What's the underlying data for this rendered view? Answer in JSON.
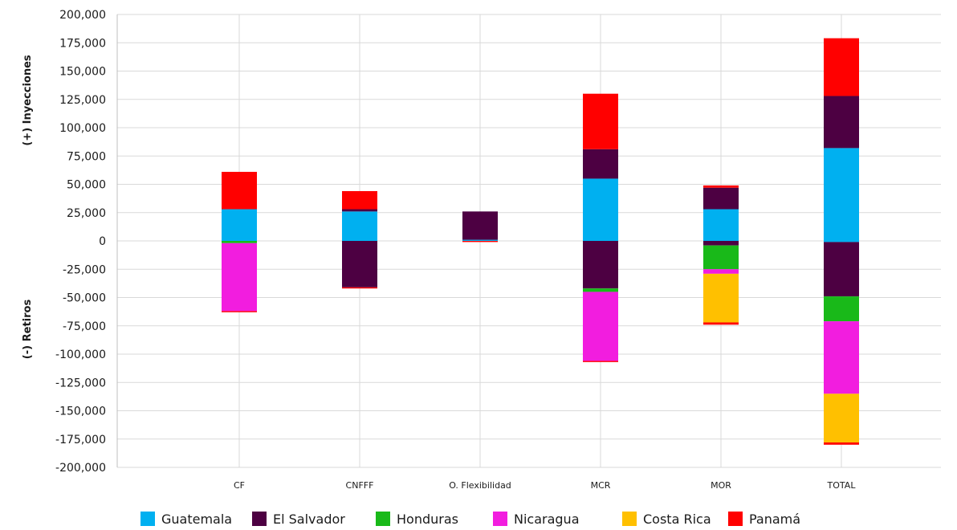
{
  "chart_data": {
    "type": "bar",
    "stacked": true,
    "categories": [
      "CF",
      "CNFFF",
      "O. Flexibilidad",
      "MCR",
      "MOR",
      "TOTAL"
    ],
    "ylim": [
      -200000,
      200000
    ],
    "y_ticks": [
      200000,
      175000,
      150000,
      125000,
      100000,
      75000,
      50000,
      25000,
      0,
      -25000,
      -50000,
      -75000,
      -100000,
      -125000,
      -150000,
      -175000,
      -200000
    ],
    "y_tick_labels": [
      "200,000",
      "175,000",
      "150,000",
      "125,000",
      "100,000",
      "75,000",
      "50,000",
      "25,000",
      "0",
      "-25,000",
      "-50,000",
      "-75,000",
      "-100,000",
      "-125,000",
      "-150,000",
      "-175,000",
      "-200,000"
    ],
    "ylabel_positive": "(+) Inyecciones",
    "ylabel_negative": "(-) Retiros",
    "grid": true,
    "legend_position": "bottom",
    "series": [
      {
        "name": "Guatemala",
        "color": "#00b0f0",
        "positive": [
          28000,
          26000,
          1000,
          55000,
          28000,
          82000
        ],
        "negative": [
          0,
          0,
          0,
          0,
          0,
          -1000
        ]
      },
      {
        "name": "El Salvador",
        "color": "#4d0042",
        "positive": [
          0,
          2000,
          25000,
          26000,
          19000,
          46000
        ],
        "negative": [
          0,
          -41000,
          0,
          -42000,
          -4000,
          -48000
        ]
      },
      {
        "name": "Honduras",
        "color": "#19b919",
        "positive": [
          0,
          0,
          0,
          0,
          0,
          0
        ],
        "negative": [
          -2000,
          0,
          0,
          -3000,
          -21000,
          -22000
        ]
      },
      {
        "name": "Nicaragua",
        "color": "#f21ddf",
        "positive": [
          0,
          0,
          0,
          0,
          0,
          0
        ],
        "negative": [
          -60000,
          0,
          0,
          -61000,
          -4000,
          -64000
        ]
      },
      {
        "name": "Costa Rica",
        "color": "#ffc000",
        "positive": [
          0,
          0,
          0,
          0,
          0,
          0
        ],
        "negative": [
          0,
          0,
          0,
          0,
          -43000,
          -43000
        ]
      },
      {
        "name": "Panamá",
        "color": "#ff0000",
        "positive": [
          33000,
          16000,
          0,
          49000,
          2000,
          51000
        ],
        "negative": [
          -1000,
          -1000,
          -1000,
          -1000,
          -2000,
          -2000
        ]
      }
    ]
  }
}
